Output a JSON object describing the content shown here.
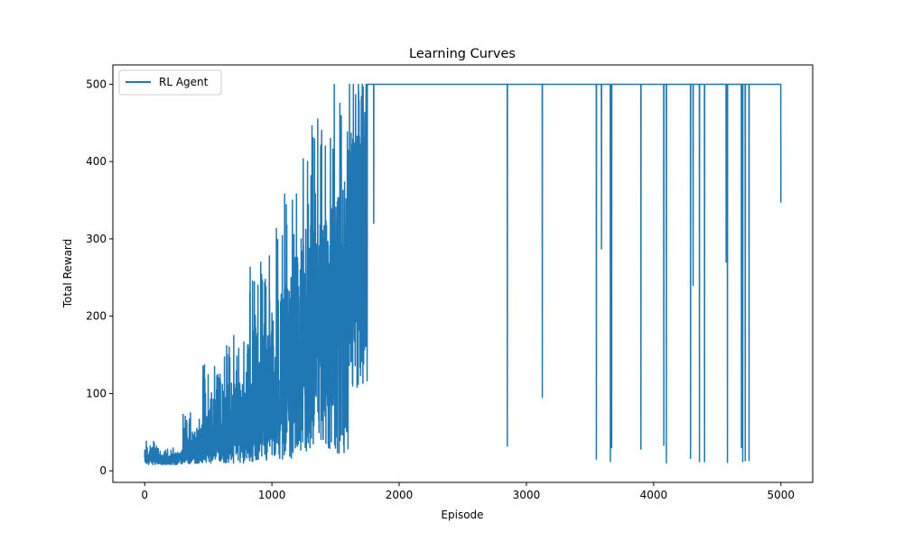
{
  "chart_data": {
    "type": "line",
    "title": "Learning Curves",
    "xlabel": "Episode",
    "ylabel": "Total Reward",
    "xlim": [
      -250,
      5250
    ],
    "ylim": [
      -15,
      525
    ],
    "xticks": [
      0,
      1000,
      2000,
      3000,
      4000,
      5000
    ],
    "yticks": [
      0,
      100,
      200,
      300,
      400,
      500
    ],
    "grid": false,
    "legend": {
      "placement": "top-left",
      "entries": [
        "RL Agent"
      ]
    },
    "series": [
      {
        "name": "RL Agent",
        "color": "#1f77b4",
        "segments": [
          {
            "range": [
              0,
              100
            ],
            "low": 8,
            "high": 42,
            "base": 12,
            "spikes": [
              [
                20,
                30
              ],
              [
                45,
                22
              ],
              [
                70,
                38
              ],
              [
                85,
                25
              ]
            ]
          },
          {
            "range": [
              100,
              300
            ],
            "low": 8,
            "high": 30,
            "base": 11,
            "spikes": [
              [
                180,
                28
              ],
              [
                260,
                24
              ]
            ]
          },
          {
            "range": [
              300,
              450
            ],
            "low": 9,
            "high": 75,
            "base": 18,
            "spikes": [
              [
                330,
                65
              ],
              [
                360,
                75
              ],
              [
                410,
                55
              ]
            ]
          },
          {
            "range": [
              450,
              600
            ],
            "low": 10,
            "high": 140,
            "base": 25,
            "spikes": [
              [
                470,
                137
              ],
              [
                540,
                50
              ],
              [
                570,
                105
              ]
            ]
          },
          {
            "range": [
              600,
              800
            ],
            "low": 10,
            "high": 180,
            "base": 30,
            "spikes": [
              [
                610,
                112
              ],
              [
                650,
                150
              ],
              [
                700,
                175
              ],
              [
                760,
                95
              ]
            ]
          },
          {
            "range": [
              800,
              1000
            ],
            "low": 12,
            "high": 280,
            "base": 45,
            "spikes": [
              [
                860,
                150
              ],
              [
                890,
                240
              ],
              [
                940,
                190
              ],
              [
                980,
                278
              ]
            ]
          },
          {
            "range": [
              1000,
              1200
            ],
            "low": 15,
            "high": 360,
            "base": 60,
            "spikes": [
              [
                1050,
                220
              ],
              [
                1100,
                358
              ],
              [
                1150,
                250
              ],
              [
                1180,
                180
              ]
            ]
          },
          {
            "range": [
              1200,
              1400
            ],
            "low": 15,
            "high": 455,
            "base": 90,
            "spikes": [
              [
                1230,
                300
              ],
              [
                1280,
                400
              ],
              [
                1320,
                240
              ],
              [
                1360,
                455
              ],
              [
                1390,
                330
              ]
            ]
          },
          {
            "range": [
              1400,
              1600
            ],
            "low": 20,
            "high": 500,
            "base": 140,
            "spikes": [
              [
                1420,
                420
              ],
              [
                1460,
                430
              ],
              [
                1490,
                500
              ],
              [
                1540,
                435
              ],
              [
                1570,
                350
              ]
            ]
          },
          {
            "range": [
              1600,
              1750
            ],
            "low": 100,
            "high": 500,
            "base": 350,
            "spikes": [
              [
                1610,
                500
              ],
              [
                1640,
                500
              ],
              [
                1680,
                500
              ],
              [
                1710,
                500
              ],
              [
                1740,
                500
              ]
            ]
          }
        ],
        "plateau": 500,
        "plateau_start": 1750,
        "dips": [
          [
            1800,
            320
          ],
          [
            2850,
            32
          ],
          [
            3125,
            95
          ],
          [
            3550,
            15
          ],
          [
            3590,
            287
          ],
          [
            3660,
            12
          ],
          [
            3670,
            30
          ],
          [
            3900,
            28
          ],
          [
            4080,
            33
          ],
          [
            4100,
            10
          ],
          [
            4290,
            16
          ],
          [
            4310,
            240
          ],
          [
            4360,
            12
          ],
          [
            4400,
            12
          ],
          [
            4570,
            270
          ],
          [
            4580,
            11
          ],
          [
            4690,
            30
          ],
          [
            4700,
            12
          ],
          [
            4720,
            13
          ],
          [
            4750,
            13
          ],
          [
            5000,
            347
          ]
        ]
      }
    ]
  }
}
